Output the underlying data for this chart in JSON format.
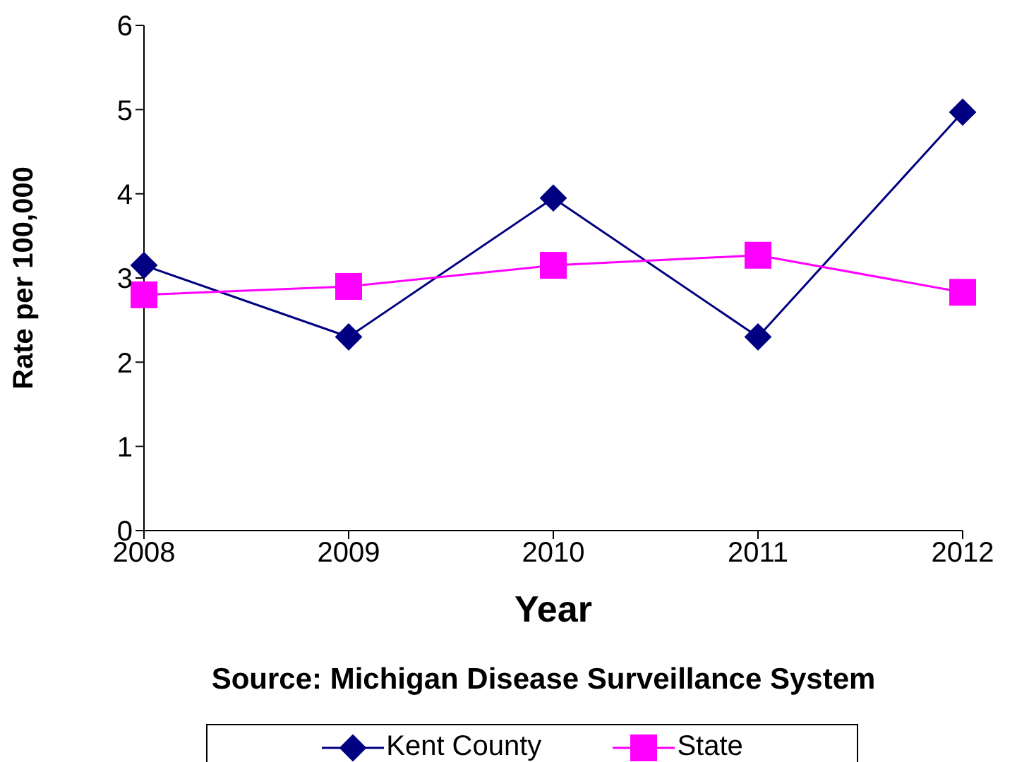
{
  "chart_data": {
    "type": "line",
    "xlabel": "Year",
    "ylabel": "Rate per 100,000",
    "categories": [
      "2008",
      "2009",
      "2010",
      "2011",
      "2012"
    ],
    "series": [
      {
        "name": "Kent County",
        "color": "#000080",
        "marker": "diamond",
        "values": [
          3.15,
          2.3,
          3.95,
          2.3,
          4.97
        ]
      },
      {
        "name": "State",
        "color": "#ff00ff",
        "marker": "square",
        "values": [
          2.8,
          2.9,
          3.15,
          3.27,
          2.83
        ]
      }
    ],
    "ylim": [
      0,
      6
    ],
    "yticks": [
      0,
      1,
      2,
      3,
      4,
      5,
      6
    ],
    "grid": false,
    "legend": "bottom",
    "line_style": "solid",
    "annotations": [
      "Source: Michigan Disease Surveillance System"
    ]
  }
}
